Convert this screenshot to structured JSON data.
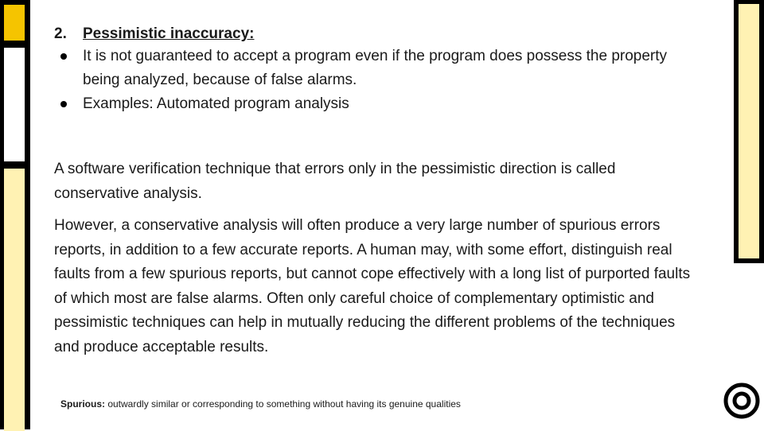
{
  "heading": {
    "number": "2.",
    "text": "Pessimistic inaccuracy:"
  },
  "bullets": [
    "It is not guaranteed to accept a program even if the program does possess the property being analyzed, because of false alarms.",
    "Examples: Automated program analysis"
  ],
  "paragraphs": [
    "A software verification technique that errors only in the pessimistic direction is called conservative analysis.",
    "However, a conservative analysis will often produce a very large number of spurious errors reports, in addition to a few accurate reports. A human may, with some effort, distinguish real faults from a few spurious reports, but cannot cope effectively with a long list of purported faults of which most are false alarms. Often only careful choice of complementary optimistic and pessimistic techniques can help in mutually reducing the different problems of the techniques and produce acceptable results."
  ],
  "footnote": {
    "term": "Spurious:",
    "definition": " outwardly similar or corresponding to something without having its genuine qualities"
  },
  "colors": {
    "accent_yellow": "#f5c400",
    "cream": "#fff2b3",
    "frame": "#000000"
  }
}
